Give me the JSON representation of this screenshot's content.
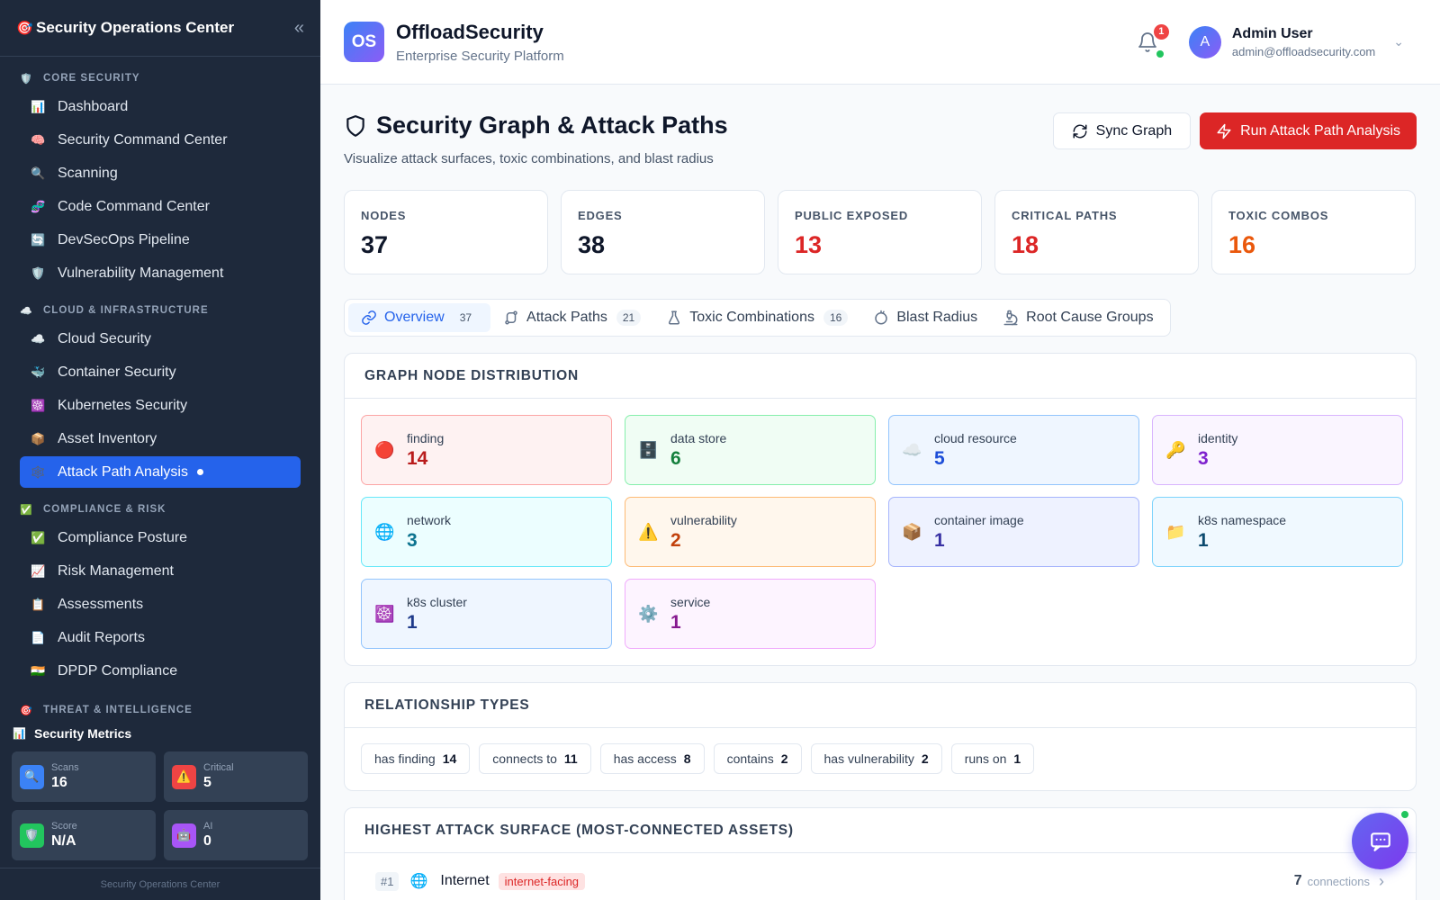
{
  "sidebar": {
    "title": "Security Operations Center",
    "sections": [
      {
        "label": "CORE SECURITY",
        "icon": "🛡️",
        "items": [
          {
            "label": "Dashboard",
            "icon": "📊"
          },
          {
            "label": "Security Command Center",
            "icon": "🧠"
          },
          {
            "label": "Scanning",
            "icon": "🔍"
          },
          {
            "label": "Code Command Center",
            "icon": "🧬"
          },
          {
            "label": "DevSecOps Pipeline",
            "icon": "🔄"
          },
          {
            "label": "Vulnerability Management",
            "icon": "🛡️"
          }
        ]
      },
      {
        "label": "CLOUD & INFRASTRUCTURE",
        "icon": "☁️",
        "items": [
          {
            "label": "Cloud Security",
            "icon": "☁️"
          },
          {
            "label": "Container Security",
            "icon": "🐳"
          },
          {
            "label": "Kubernetes Security",
            "icon": "☸️"
          },
          {
            "label": "Asset Inventory",
            "icon": "📦"
          },
          {
            "label": "Attack Path Analysis",
            "icon": "🕸️"
          }
        ]
      },
      {
        "label": "COMPLIANCE & RISK",
        "icon": "✅",
        "items": [
          {
            "label": "Compliance Posture",
            "icon": "✅"
          },
          {
            "label": "Risk Management",
            "icon": "📈"
          },
          {
            "label": "Assessments",
            "icon": "📋"
          },
          {
            "label": "Audit Reports",
            "icon": "📄"
          },
          {
            "label": "DPDP Compliance",
            "icon": "🇮🇳"
          }
        ]
      },
      {
        "label": "THREAT & INTELLIGENCE",
        "icon": "🎯",
        "items": []
      }
    ],
    "metrics": {
      "title": "Security Metrics",
      "items": [
        {
          "label": "Scans",
          "value": "16",
          "icon": "🔍",
          "color": "#3b82f6"
        },
        {
          "label": "Critical",
          "value": "5",
          "icon": "⚠️",
          "color": "#ef4444"
        },
        {
          "label": "Score",
          "value": "N/A",
          "icon": "🛡️",
          "color": "#22c55e"
        },
        {
          "label": "AI",
          "value": "0",
          "icon": "🤖",
          "color": "#a855f7"
        }
      ]
    },
    "footer": "Security Operations Center"
  },
  "topbar": {
    "logo_text": "OS",
    "brand": "OffloadSecurity",
    "subtitle": "Enterprise Security Platform",
    "notification_count": "1",
    "user_initial": "A",
    "user_name": "Admin User",
    "user_email": "admin@offloadsecurity.com"
  },
  "page": {
    "title": "Security Graph & Attack Paths",
    "subtitle": "Visualize attack surfaces, toxic combinations, and blast radius",
    "sync_label": "Sync Graph",
    "run_label": "Run Attack Path Analysis"
  },
  "stats": [
    {
      "label": "NODES",
      "value": "37",
      "color": "#0f172a"
    },
    {
      "label": "EDGES",
      "value": "38",
      "color": "#0f172a"
    },
    {
      "label": "PUBLIC EXPOSED",
      "value": "13",
      "color": "#dc2626"
    },
    {
      "label": "CRITICAL PATHS",
      "value": "18",
      "color": "#dc2626"
    },
    {
      "label": "TOXIC COMBOS",
      "value": "16",
      "color": "#ea580c"
    }
  ],
  "tabs": [
    {
      "label": "Overview",
      "count": "37"
    },
    {
      "label": "Attack Paths",
      "count": "21"
    },
    {
      "label": "Toxic Combinations",
      "count": "16"
    },
    {
      "label": "Blast Radius",
      "count": ""
    },
    {
      "label": "Root Cause Groups",
      "count": ""
    }
  ],
  "distribution": {
    "title": "GRAPH NODE DISTRIBUTION",
    "nodes": [
      {
        "label": "finding",
        "value": "14",
        "icon": "🔴",
        "bg": "#fef2f2",
        "border": "#fca5a5",
        "color": "#b91c1c"
      },
      {
        "label": "data store",
        "value": "6",
        "icon": "🗄️",
        "bg": "#f0fdf4",
        "border": "#86efac",
        "color": "#15803d"
      },
      {
        "label": "cloud resource",
        "value": "5",
        "icon": "☁️",
        "bg": "#eff6ff",
        "border": "#93c5fd",
        "color": "#1d4ed8"
      },
      {
        "label": "identity",
        "value": "3",
        "icon": "🔑",
        "bg": "#faf5ff",
        "border": "#d8b4fe",
        "color": "#7e22ce"
      },
      {
        "label": "network",
        "value": "3",
        "icon": "🌐",
        "bg": "#ecfeff",
        "border": "#67e8f9",
        "color": "#0e7490"
      },
      {
        "label": "vulnerability",
        "value": "2",
        "icon": "⚠️",
        "bg": "#fff7ed",
        "border": "#fdba74",
        "color": "#c2410c"
      },
      {
        "label": "container image",
        "value": "1",
        "icon": "📦",
        "bg": "#eef2ff",
        "border": "#a5b4fc",
        "color": "#3730a3"
      },
      {
        "label": "k8s namespace",
        "value": "1",
        "icon": "📁",
        "bg": "#f0f9ff",
        "border": "#7dd3fc",
        "color": "#0c4a6e"
      },
      {
        "label": "k8s cluster",
        "value": "1",
        "icon": "☸️",
        "bg": "#eff6ff",
        "border": "#93c5fd",
        "color": "#1e3a8a"
      },
      {
        "label": "service",
        "value": "1",
        "icon": "⚙️",
        "bg": "#fdf4ff",
        "border": "#f0abfc",
        "color": "#86198f"
      }
    ]
  },
  "relationships": {
    "title": "RELATIONSHIP TYPES",
    "items": [
      {
        "label": "has finding",
        "count": "14"
      },
      {
        "label": "connects to",
        "count": "11"
      },
      {
        "label": "has access",
        "count": "8"
      },
      {
        "label": "contains",
        "count": "2"
      },
      {
        "label": "has vulnerability",
        "count": "2"
      },
      {
        "label": "runs on",
        "count": "1"
      }
    ]
  },
  "surface": {
    "title": "HIGHEST ATTACK SURFACE (MOST-CONNECTED ASSETS)",
    "rows": [
      {
        "rank": "#1",
        "icon": "🌐",
        "name": "Internet",
        "tag": "internet-facing",
        "connections": "7",
        "connections_label": "connections"
      }
    ]
  }
}
